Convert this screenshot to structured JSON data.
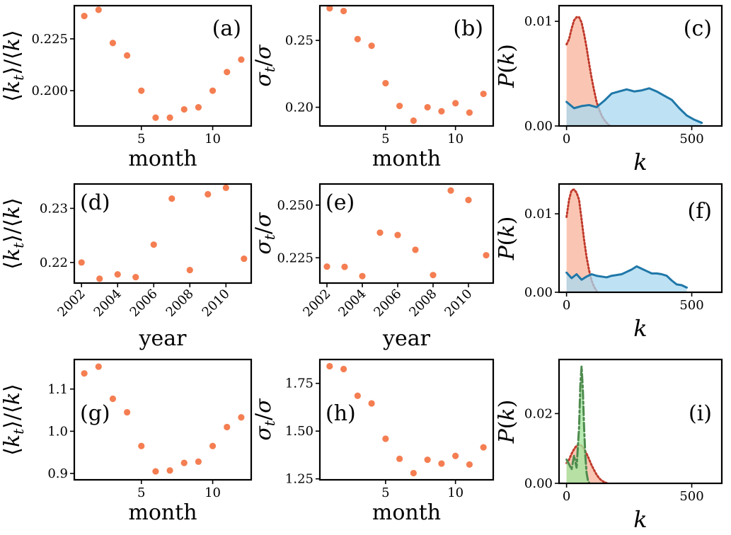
{
  "colors": {
    "point": "#F47E52",
    "blue_line": "#1F77A8",
    "blue_fill": "#A8D8F0",
    "red_fill": "#F9B8A0",
    "red_dot": "#C0392B",
    "green_line": "#4E8B4E",
    "green_fill": "#A6E6A0",
    "olive_fill": "#C9B47A"
  },
  "chart_data": [
    {
      "id": "a",
      "type": "scatter",
      "panel_label": "(a)",
      "xlabel": "month",
      "ylabel": "⟨k_t⟩/⟨k⟩",
      "xlim": [
        0.3,
        12.7
      ],
      "ylim": [
        0.183,
        0.241
      ],
      "xticks": [
        5,
        10
      ],
      "xtick_labels": [
        "5",
        "10"
      ],
      "yticks": [
        0.2,
        0.225
      ],
      "ytick_labels": [
        "0.200",
        "0.225"
      ],
      "x": [
        1,
        2,
        3,
        4,
        5,
        6,
        7,
        8,
        9,
        10,
        11,
        12
      ],
      "y": [
        0.236,
        0.239,
        0.223,
        0.217,
        0.2,
        0.187,
        0.187,
        0.191,
        0.192,
        0.2,
        0.209,
        0.215
      ]
    },
    {
      "id": "b",
      "type": "scatter",
      "panel_label": "(b)",
      "xlabel": "month",
      "ylabel": "σ_t/σ",
      "xlim": [
        0.3,
        12.7
      ],
      "ylim": [
        0.186,
        0.276
      ],
      "xticks": [
        5,
        10
      ],
      "xtick_labels": [
        "5",
        "10"
      ],
      "yticks": [
        0.2,
        0.25
      ],
      "ytick_labels": [
        "0.20",
        "0.25"
      ],
      "x": [
        1,
        2,
        3,
        4,
        5,
        6,
        7,
        8,
        9,
        10,
        11,
        12
      ],
      "y": [
        0.274,
        0.272,
        0.251,
        0.246,
        0.218,
        0.201,
        0.19,
        0.2,
        0.197,
        0.203,
        0.196,
        0.21
      ]
    },
    {
      "id": "c",
      "type": "area",
      "panel_label": "(c)",
      "xlabel": "k",
      "ylabel": "P(k)",
      "xlim": [
        -30,
        620
      ],
      "ylim": [
        0,
        0.0115
      ],
      "xticks": [
        0,
        500
      ],
      "xtick_labels": [
        "0",
        "500"
      ],
      "yticks": [
        0,
        0.01
      ],
      "ytick_labels": [
        "0.00",
        "0.01"
      ],
      "series": [
        {
          "name": "red",
          "style": "dotted-fill",
          "x": [
            0,
            10,
            20,
            30,
            40,
            50,
            60,
            70,
            80,
            90,
            100,
            110,
            120,
            130,
            140,
            150,
            160,
            170
          ],
          "y": [
            0.0078,
            0.0083,
            0.0093,
            0.0101,
            0.0104,
            0.0104,
            0.0099,
            0.0088,
            0.0075,
            0.006,
            0.0046,
            0.0034,
            0.0023,
            0.0016,
            0.001,
            0.0006,
            0.0003,
            0.0001
          ]
        },
        {
          "name": "blue",
          "style": "solid-fill",
          "x": [
            0,
            30,
            60,
            90,
            120,
            150,
            180,
            210,
            240,
            270,
            300,
            330,
            360,
            390,
            420,
            450,
            480,
            510,
            540
          ],
          "y": [
            0.0023,
            0.0017,
            0.0019,
            0.002,
            0.0018,
            0.0024,
            0.0031,
            0.0033,
            0.0035,
            0.0033,
            0.0034,
            0.0036,
            0.0033,
            0.0029,
            0.0025,
            0.0017,
            0.001,
            0.0006,
            0.0003
          ]
        }
      ]
    },
    {
      "id": "d",
      "type": "scatter",
      "panel_label": "(d)",
      "xlabel": "year",
      "ylabel": "⟨k_t⟩/⟨k⟩",
      "xlim": [
        2001.6,
        2011.4
      ],
      "ylim": [
        0.2162,
        0.2345
      ],
      "xticks": [
        2002,
        2004,
        2006,
        2008,
        2010
      ],
      "xtick_labels": [
        "2002",
        "2004",
        "2006",
        "2008",
        "2010"
      ],
      "yticks": [
        0.22,
        0.23
      ],
      "ytick_labels": [
        "0.22",
        "0.23"
      ],
      "x": [
        2002,
        2003,
        2004,
        2005,
        2006,
        2007,
        2008,
        2009,
        2010,
        2011
      ],
      "y": [
        0.22,
        0.217,
        0.2178,
        0.2173,
        0.2233,
        0.2318,
        0.2186,
        0.2326,
        0.2338,
        0.2207
      ]
    },
    {
      "id": "e",
      "type": "scatter",
      "panel_label": "(e)",
      "xlabel": "year",
      "ylabel": "σ_t/σ",
      "xlim": [
        2001.6,
        2011.4
      ],
      "ylim": [
        0.213,
        0.26
      ],
      "xticks": [
        2002,
        2004,
        2006,
        2008,
        2010
      ],
      "xtick_labels": [
        "2002",
        "2004",
        "2006",
        "2008",
        "2010"
      ],
      "yticks": [
        0.225,
        0.25
      ],
      "ytick_labels": [
        "0.225",
        "0.250"
      ],
      "x": [
        2002,
        2003,
        2004,
        2005,
        2006,
        2007,
        2008,
        2009,
        2010,
        2011
      ],
      "y": [
        0.2208,
        0.2207,
        0.2163,
        0.2369,
        0.2358,
        0.2288,
        0.2168,
        0.2569,
        0.2524,
        0.2262
      ]
    },
    {
      "id": "f",
      "type": "area",
      "panel_label": "(f)",
      "xlabel": "k",
      "ylabel": "P(k)",
      "xlim": [
        -30,
        620
      ],
      "ylim": [
        0,
        0.0138
      ],
      "xticks": [
        0,
        500
      ],
      "xtick_labels": [
        "0",
        "500"
      ],
      "yticks": [
        0,
        0.01
      ],
      "ytick_labels": [
        "0.00",
        "0.01"
      ],
      "series": [
        {
          "name": "red",
          "style": "dotted-fill",
          "x": [
            0,
            10,
            20,
            30,
            40,
            50,
            60,
            70,
            80,
            90,
            100,
            110,
            120
          ],
          "y": [
            0.0096,
            0.0118,
            0.013,
            0.0131,
            0.0127,
            0.0118,
            0.0093,
            0.0067,
            0.0045,
            0.0028,
            0.0015,
            0.0007,
            0.0002
          ]
        },
        {
          "name": "blue",
          "style": "solid-fill",
          "x": [
            0,
            20,
            40,
            60,
            80,
            100,
            120,
            140,
            160,
            180,
            200,
            220,
            240,
            260,
            280,
            300,
            320,
            340,
            360,
            380,
            400,
            420,
            440,
            460,
            480
          ],
          "y": [
            0.0025,
            0.0018,
            0.0023,
            0.0016,
            0.002,
            0.0023,
            0.0021,
            0.002,
            0.0019,
            0.0021,
            0.0022,
            0.0023,
            0.0026,
            0.0029,
            0.0033,
            0.003,
            0.0027,
            0.0024,
            0.0024,
            0.0023,
            0.0021,
            0.0015,
            0.001,
            0.0009,
            0.0006
          ]
        }
      ]
    },
    {
      "id": "g",
      "type": "scatter",
      "panel_label": "(g)",
      "xlabel": "month",
      "ylabel": "⟨k_t⟩/⟨k⟩",
      "xlim": [
        0.3,
        12.7
      ],
      "ylim": [
        0.885,
        1.17
      ],
      "xticks": [
        5,
        10
      ],
      "xtick_labels": [
        "5",
        "10"
      ],
      "yticks": [
        0.9,
        1.0,
        1.1
      ],
      "ytick_labels": [
        "0.9",
        "1.0",
        "1.1"
      ],
      "x": [
        1,
        2,
        3,
        4,
        5,
        6,
        7,
        8,
        9,
        10,
        11,
        12
      ],
      "y": [
        1.137,
        1.153,
        1.077,
        1.045,
        0.965,
        0.905,
        0.907,
        0.925,
        0.928,
        0.965,
        1.01,
        1.033
      ]
    },
    {
      "id": "h",
      "type": "scatter",
      "panel_label": "(h)",
      "xlabel": "month",
      "ylabel": "σ_t/σ",
      "xlim": [
        0.3,
        12.7
      ],
      "ylim": [
        1.245,
        1.875
      ],
      "xticks": [
        5,
        10
      ],
      "xtick_labels": [
        "5",
        "10"
      ],
      "yticks": [
        1.25,
        1.5,
        1.75
      ],
      "ytick_labels": [
        "1.25",
        "1.50",
        "1.75"
      ],
      "x": [
        1,
        2,
        3,
        4,
        5,
        6,
        7,
        8,
        9,
        10,
        11,
        12
      ],
      "y": [
        1.84,
        1.825,
        1.685,
        1.645,
        1.46,
        1.355,
        1.28,
        1.35,
        1.33,
        1.37,
        1.325,
        1.415
      ]
    },
    {
      "id": "i",
      "type": "area",
      "panel_label": "(i)",
      "xlabel": "k",
      "ylabel": "P(k)",
      "xlim": [
        -30,
        620
      ],
      "ylim": [
        0,
        0.0355
      ],
      "xticks": [
        0,
        500
      ],
      "xtick_labels": [
        "0",
        "500"
      ],
      "yticks": [
        0,
        0.02
      ],
      "ytick_labels": [
        "0.00",
        "0.02"
      ],
      "series": [
        {
          "name": "red",
          "style": "dotted-fill",
          "x": [
            0,
            10,
            20,
            30,
            40,
            50,
            60,
            70,
            80,
            90,
            100,
            110,
            120,
            130,
            140,
            150,
            160
          ],
          "y": [
            0.0058,
            0.0068,
            0.0085,
            0.0098,
            0.0108,
            0.0111,
            0.0108,
            0.0098,
            0.0085,
            0.0069,
            0.0052,
            0.0038,
            0.0025,
            0.0015,
            0.0008,
            0.0004,
            0.0001
          ]
        },
        {
          "name": "green",
          "style": "dashdot-fill",
          "x": [
            0,
            10,
            20,
            30,
            40,
            50,
            55,
            60,
            65,
            70,
            75,
            80,
            85,
            90
          ],
          "y": [
            0.0068,
            0.0055,
            0.004,
            0.008,
            0.0045,
            0.016,
            0.028,
            0.0335,
            0.027,
            0.016,
            0.008,
            0.003,
            0.001,
            0.0002
          ]
        }
      ]
    }
  ]
}
